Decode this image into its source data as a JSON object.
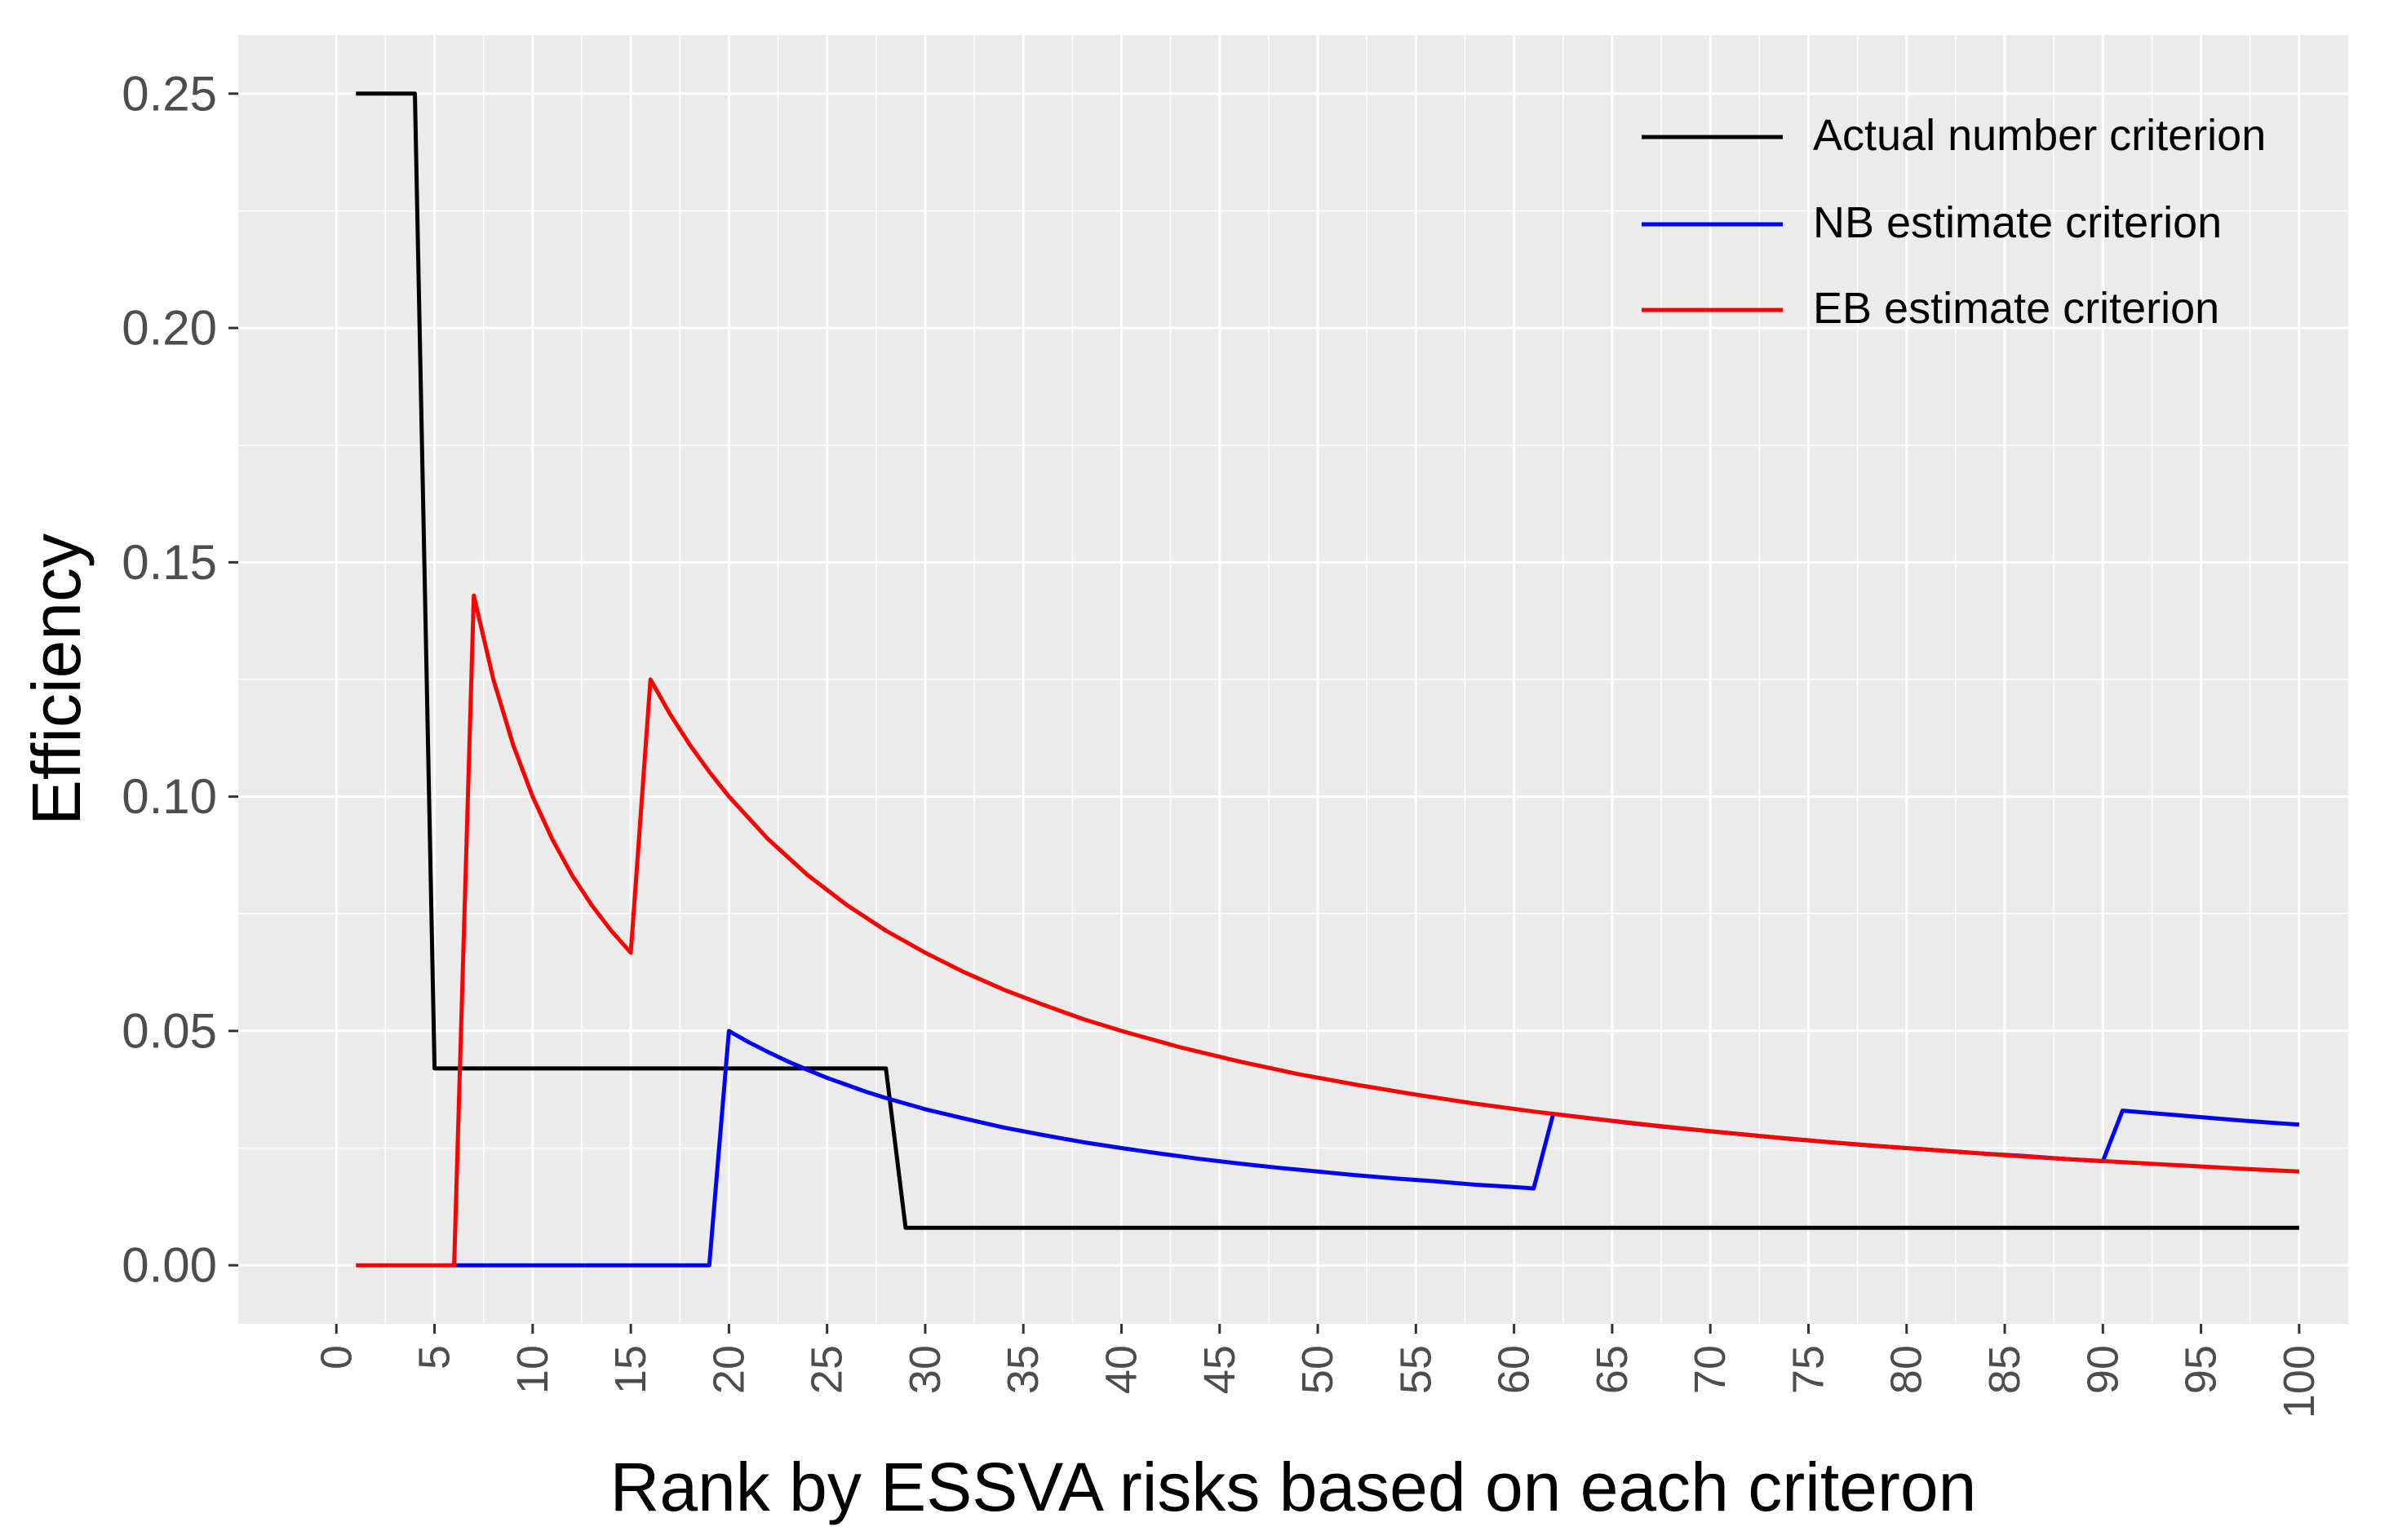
{
  "chart_data": {
    "type": "line",
    "title": "",
    "xlabel": "Rank by ESSVA risks based on each criteron",
    "ylabel": "Efficiency",
    "xlim": [
      -5,
      102.5
    ],
    "ylim": [
      -0.0125,
      0.2625
    ],
    "x_ticks": [
      0,
      5,
      10,
      15,
      20,
      25,
      30,
      35,
      40,
      45,
      50,
      55,
      60,
      65,
      70,
      75,
      80,
      85,
      90,
      95,
      100
    ],
    "x_tick_labels": [
      "0",
      "5",
      "10",
      "15",
      "20",
      "25",
      "30",
      "35",
      "40",
      "45",
      "50",
      "55",
      "60",
      "65",
      "70",
      "75",
      "80",
      "85",
      "90",
      "95",
      "100"
    ],
    "y_ticks": [
      0,
      0.05,
      0.1,
      0.15,
      0.2,
      0.25
    ],
    "y_tick_labels": [
      "0.00",
      "0.05",
      "0.10",
      "0.15",
      "0.20",
      "0.25"
    ],
    "grid": true,
    "legend_position": "top-right",
    "series": [
      {
        "name": "Actual number criterion",
        "color": "#000000",
        "points": [
          [
            1,
            0.25
          ],
          [
            4,
            0.25
          ],
          [
            5,
            0.042
          ],
          [
            28,
            0.042
          ],
          [
            29,
            0.008
          ],
          [
            100,
            0.008
          ]
        ]
      },
      {
        "name": "NB estimate criterion",
        "color": "#0000ff",
        "points": [
          [
            6,
            0
          ],
          [
            19,
            0
          ],
          [
            20,
            0.05
          ],
          [
            21,
            0.0476
          ],
          [
            22,
            0.0455
          ],
          [
            23,
            0.0435
          ],
          [
            24,
            0.0417
          ],
          [
            25,
            0.04
          ],
          [
            26,
            0.0385
          ],
          [
            27,
            0.037
          ],
          [
            28,
            0.0357
          ],
          [
            29,
            0.0345
          ],
          [
            30,
            0.0333
          ],
          [
            32,
            0.0313
          ],
          [
            34,
            0.0294
          ],
          [
            36,
            0.0278
          ],
          [
            38,
            0.0263
          ],
          [
            40,
            0.025
          ],
          [
            42,
            0.0238
          ],
          [
            44,
            0.0227
          ],
          [
            46,
            0.0217
          ],
          [
            48,
            0.0208
          ],
          [
            50,
            0.02
          ],
          [
            52,
            0.0192
          ],
          [
            54,
            0.0185
          ],
          [
            56,
            0.0179
          ],
          [
            58,
            0.0172
          ],
          [
            60,
            0.0167
          ],
          [
            61,
            0.0164
          ],
          [
            62,
            0.0323
          ],
          [
            64,
            0.0313
          ],
          [
            66,
            0.0303
          ],
          [
            68,
            0.0294
          ],
          [
            70,
            0.0286
          ],
          [
            72,
            0.0278
          ],
          [
            74,
            0.027
          ],
          [
            76,
            0.0263
          ],
          [
            78,
            0.0256
          ],
          [
            80,
            0.025
          ],
          [
            82,
            0.0244
          ],
          [
            84,
            0.0238
          ],
          [
            86,
            0.0233
          ],
          [
            88,
            0.0227
          ],
          [
            90,
            0.0222
          ],
          [
            91,
            0.033
          ],
          [
            93,
            0.0323
          ],
          [
            95,
            0.0316
          ],
          [
            97,
            0.0309
          ],
          [
            99,
            0.0303
          ],
          [
            100,
            0.03
          ]
        ]
      },
      {
        "name": "EB estimate criterion",
        "color": "#ff0000",
        "points": [
          [
            1,
            0
          ],
          [
            6,
            0
          ],
          [
            7,
            0.1429
          ],
          [
            8,
            0.125
          ],
          [
            9,
            0.1111
          ],
          [
            10,
            0.1
          ],
          [
            11,
            0.0909
          ],
          [
            12,
            0.0833
          ],
          [
            13,
            0.0769
          ],
          [
            14,
            0.0714
          ],
          [
            15,
            0.0667
          ],
          [
            16,
            0.125
          ],
          [
            17,
            0.1176
          ],
          [
            18,
            0.1111
          ],
          [
            19,
            0.1053
          ],
          [
            20,
            0.1
          ],
          [
            22,
            0.0909
          ],
          [
            24,
            0.0833
          ],
          [
            26,
            0.0769
          ],
          [
            28,
            0.0714
          ],
          [
            30,
            0.0667
          ],
          [
            32,
            0.0625
          ],
          [
            34,
            0.0588
          ],
          [
            36,
            0.0556
          ],
          [
            38,
            0.0526
          ],
          [
            40,
            0.05
          ],
          [
            43,
            0.0465
          ],
          [
            46,
            0.0435
          ],
          [
            49,
            0.0408
          ],
          [
            52,
            0.0385
          ],
          [
            55,
            0.0364
          ],
          [
            58,
            0.0345
          ],
          [
            61,
            0.0328
          ],
          [
            64,
            0.0313
          ],
          [
            67,
            0.0299
          ],
          [
            70,
            0.0286
          ],
          [
            73,
            0.0274
          ],
          [
            76,
            0.0263
          ],
          [
            79,
            0.0253
          ],
          [
            82,
            0.0244
          ],
          [
            85,
            0.0235
          ],
          [
            88,
            0.0227
          ],
          [
            91,
            0.022
          ],
          [
            94,
            0.0213
          ],
          [
            97,
            0.0206
          ],
          [
            100,
            0.02
          ]
        ]
      }
    ]
  }
}
